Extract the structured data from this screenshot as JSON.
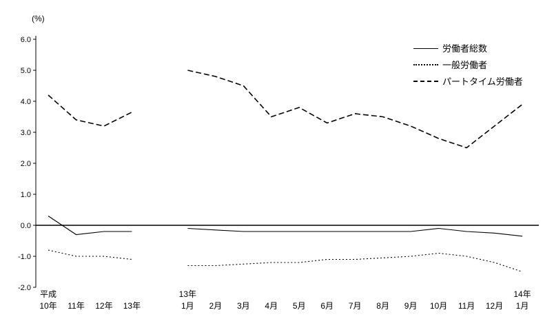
{
  "chart_data": {
    "type": "line",
    "title": "",
    "ylabel": "(%)",
    "xlabel": "",
    "ylim": [
      -2.0,
      6.0
    ],
    "ytick_step": 1.0,
    "grid": false,
    "legend_position": "top-right",
    "x_categories": [
      {
        "line1": "平成",
        "line2": "10年"
      },
      {
        "line2": "11年"
      },
      {
        "line2": "12年"
      },
      {
        "line2": "13年"
      },
      {
        "gap": true
      },
      {
        "line1": "13年",
        "line2": "1月"
      },
      {
        "line2": "2月"
      },
      {
        "line2": "3月"
      },
      {
        "line2": "4月"
      },
      {
        "line2": "5月"
      },
      {
        "line2": "6月"
      },
      {
        "line2": "7月"
      },
      {
        "line2": "8月"
      },
      {
        "line2": "9月"
      },
      {
        "line2": "10月"
      },
      {
        "line2": "11月"
      },
      {
        "line2": "12月"
      },
      {
        "line1": "14年",
        "line2": "1月"
      }
    ],
    "series": [
      {
        "name": "労働者総数",
        "style": "solid",
        "values": [
          0.3,
          -0.3,
          -0.2,
          -0.2,
          null,
          -0.1,
          -0.15,
          -0.2,
          -0.2,
          -0.2,
          -0.2,
          -0.2,
          -0.2,
          -0.2,
          -0.1,
          -0.2,
          -0.25,
          -0.35
        ]
      },
      {
        "name": "一般労働者",
        "style": "dotted",
        "values": [
          -0.8,
          -1.0,
          -1.0,
          -1.1,
          null,
          -1.3,
          -1.3,
          -1.25,
          -1.2,
          -1.2,
          -1.1,
          -1.1,
          -1.05,
          -1.0,
          -0.9,
          -1.0,
          -1.2,
          -1.5
        ]
      },
      {
        "name": "パートタイム労働者",
        "style": "dashed",
        "values": [
          4.2,
          3.4,
          3.2,
          3.65,
          null,
          5.0,
          4.8,
          4.5,
          3.5,
          3.8,
          3.3,
          3.6,
          3.5,
          3.2,
          2.8,
          2.5,
          3.2,
          3.9
        ]
      }
    ]
  }
}
